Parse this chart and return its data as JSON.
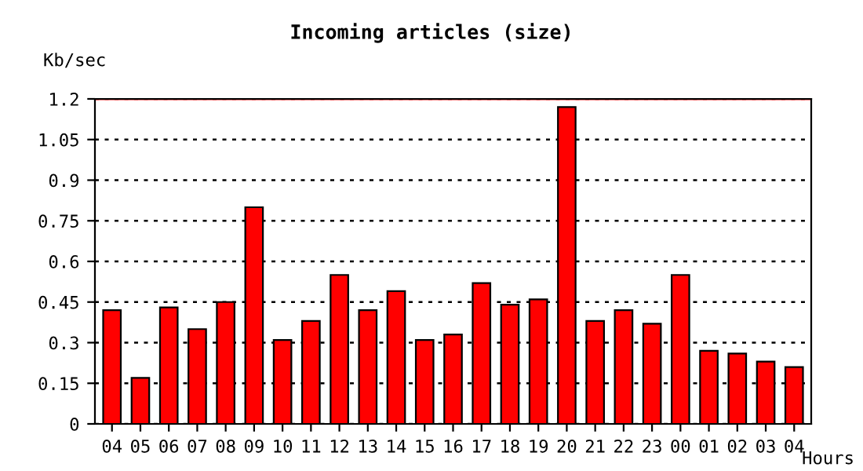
{
  "chart_data": {
    "type": "bar",
    "title": "Incoming articles (size)",
    "ylabel": "Kb/sec",
    "xlabel": "Hours",
    "categories": [
      "04",
      "05",
      "06",
      "07",
      "08",
      "09",
      "10",
      "11",
      "12",
      "13",
      "14",
      "15",
      "16",
      "17",
      "18",
      "19",
      "20",
      "21",
      "22",
      "23",
      "00",
      "01",
      "02",
      "03",
      "04"
    ],
    "values": [
      0.42,
      0.17,
      0.43,
      0.35,
      0.45,
      0.8,
      0.31,
      0.38,
      0.55,
      0.42,
      0.49,
      0.31,
      0.33,
      0.52,
      0.44,
      0.46,
      1.17,
      0.38,
      0.42,
      0.37,
      0.55,
      0.27,
      0.26,
      0.23,
      0.21
    ],
    "color": "#ff0000",
    "ylim": [
      0,
      1.2
    ],
    "yticks": [
      0,
      0.15,
      0.3,
      0.45,
      0.6,
      0.75,
      0.9,
      1.05,
      1.2
    ],
    "grid": "y",
    "line_style": "dotted",
    "ref_lines": [
      {
        "axis": "y",
        "value": 1.2,
        "label": null,
        "color": "#ff0000"
      }
    ]
  }
}
